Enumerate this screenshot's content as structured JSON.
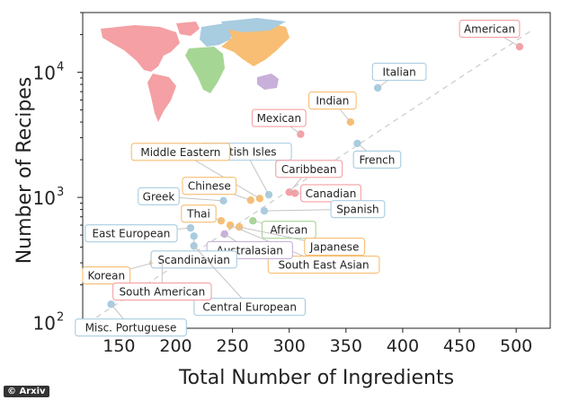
{
  "chart_data": {
    "type": "scatter",
    "title": "",
    "xlabel": "Total Number of Ingredients",
    "ylabel": "Number of Recipes",
    "xlim": [
      118,
      530
    ],
    "ylim": [
      90,
      30000
    ],
    "yscale": "log",
    "x_ticks": [
      150,
      200,
      250,
      300,
      350,
      400,
      450,
      500
    ],
    "y_ticks": [
      {
        "value": 100,
        "base": "10",
        "exp": "2"
      },
      {
        "value": 1000,
        "base": "10",
        "exp": "3"
      },
      {
        "value": 10000,
        "base": "10",
        "exp": "4"
      }
    ],
    "grid": false,
    "trend_line": true,
    "legend": "world map inset (top-left), colors = regions",
    "region_colors": {
      "americas": "#f4a0a5",
      "europe": "#a8cce0",
      "asia": "#f8be73",
      "africa": "#a6d694",
      "oceania": "#c8b0da"
    },
    "points": [
      {
        "name": "American",
        "x": 503,
        "y": 16000,
        "region": "americas"
      },
      {
        "name": "Italian",
        "x": 378,
        "y": 7500,
        "region": "europe"
      },
      {
        "name": "Indian",
        "x": 354,
        "y": 4000,
        "region": "asia"
      },
      {
        "name": "French",
        "x": 360,
        "y": 2700,
        "region": "europe"
      },
      {
        "name": "Mexican",
        "x": 310,
        "y": 3200,
        "region": "americas"
      },
      {
        "name": "British Isles",
        "x": 282,
        "y": 1050,
        "region": "europe"
      },
      {
        "name": "Middle Eastern",
        "x": 274,
        "y": 980,
        "region": "asia"
      },
      {
        "name": "Caribbean",
        "x": 300,
        "y": 1100,
        "region": "americas"
      },
      {
        "name": "Canadian",
        "x": 305,
        "y": 1080,
        "region": "americas"
      },
      {
        "name": "Chinese",
        "x": 266,
        "y": 950,
        "region": "asia"
      },
      {
        "name": "Greek",
        "x": 242,
        "y": 940,
        "region": "europe"
      },
      {
        "name": "African",
        "x": 268,
        "y": 650,
        "region": "africa"
      },
      {
        "name": "Spanish",
        "x": 278,
        "y": 780,
        "region": "europe"
      },
      {
        "name": "Thai",
        "x": 240,
        "y": 650,
        "region": "asia"
      },
      {
        "name": "Japanese",
        "x": 256,
        "y": 580,
        "region": "asia"
      },
      {
        "name": "South East Asian",
        "x": 248,
        "y": 600,
        "region": "asia"
      },
      {
        "name": "East European",
        "x": 213,
        "y": 570,
        "region": "europe"
      },
      {
        "name": "Australasian",
        "x": 243,
        "y": 510,
        "region": "oceania"
      },
      {
        "name": "Scandinavian",
        "x": 216,
        "y": 490,
        "region": "europe"
      },
      {
        "name": "Central European",
        "x": 216,
        "y": 410,
        "region": "europe"
      },
      {
        "name": "Korean",
        "x": 180,
        "y": 300,
        "region": "asia"
      },
      {
        "name": "South American",
        "x": 188,
        "y": 310,
        "region": "americas"
      },
      {
        "name": "Misc. Portuguese",
        "x": 143,
        "y": 140,
        "region": "europe"
      }
    ]
  },
  "watermark": "© Arxiv"
}
